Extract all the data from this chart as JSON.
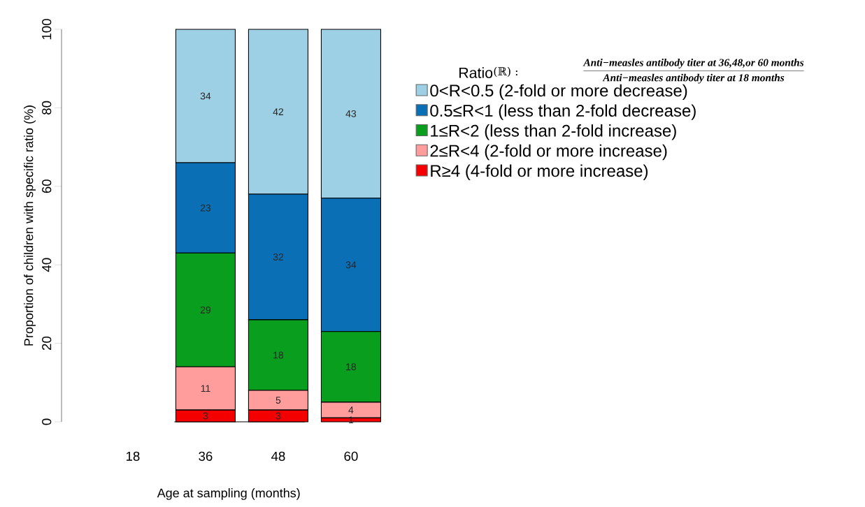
{
  "chart_data": {
    "type": "bar",
    "stacked": true,
    "categories": [
      "18",
      "36",
      "48",
      "60"
    ],
    "xlabel": "Age at sampling (months)",
    "ylabel": "Proportion of children with specific ratio (%)",
    "legend_title": "Ratio",
    "annotations": [
      "(ℝ) :",
      "Anti−measles antibody titer at 36,48,or 60 months",
      "Anti−measles antibody titer at 18 months"
    ],
    "series": [
      {
        "name": "R≥4  (4-fold or more increase)",
        "color": "#f50000",
        "values": [
          0,
          3,
          3,
          1
        ],
        "value_labels": [
          null,
          "3",
          "3",
          "1"
        ]
      },
      {
        "name": "2≤R<4  (2-fold or more increase)",
        "color": "#ff9d9d",
        "values": [
          0,
          11,
          5,
          4
        ],
        "value_labels": [
          null,
          "11",
          "5",
          "4"
        ]
      },
      {
        "name": "1≤R<2  (less than 2-fold increase)",
        "color": "#0a9e1e",
        "values": [
          0,
          29,
          18,
          18
        ],
        "value_labels": [
          null,
          "29",
          "18",
          "18"
        ]
      },
      {
        "name": "0.5≤R<1  (less than 2-fold decrease)",
        "color": "#0a6fb5",
        "values": [
          0,
          23,
          32,
          34
        ],
        "value_labels": [
          null,
          "23",
          "32",
          "34"
        ]
      },
      {
        "name": "0<R<0.5 (2-fold or more decrease)",
        "color": "#9dd0e4",
        "values": [
          0,
          34,
          42,
          43
        ],
        "value_labels": [
          null,
          "34",
          "42",
          "43"
        ]
      }
    ],
    "ylim": [
      0,
      100
    ],
    "yticks": [
      0,
      20,
      40,
      60,
      80,
      100
    ],
    "legend": "right",
    "grid": false
  }
}
